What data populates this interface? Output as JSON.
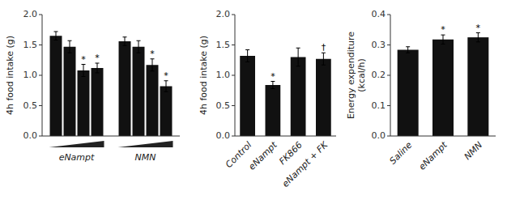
{
  "chart_data": [
    {
      "type": "bar",
      "y_label": "4h food intake (g)",
      "categories": [
        "eNampt",
        "NMN"
      ],
      "color": "#111111",
      "grid": false,
      "ylim": [
        0,
        2.0
      ],
      "yticks": [
        {
          "value": 0.0,
          "label": "0.0"
        },
        0.5,
        {
          "value": 1.0,
          "label": "1.0"
        },
        1.5,
        {
          "value": 2.0,
          "label": "2.0"
        }
      ],
      "series": [
        {
          "values": [
            1.65,
            1.56
          ],
          "errors": [
            0.07,
            0.07
          ]
        },
        {
          "values": [
            1.47,
            1.47
          ],
          "errors": [
            0.1,
            0.1
          ]
        },
        {
          "values": [
            1.08,
            1.17
          ],
          "errors": [
            0.1,
            0.1
          ],
          "annotations": [
            "*",
            "*"
          ]
        },
        {
          "values": [
            1.12,
            0.82
          ],
          "errors": [
            0.08,
            0.09
          ],
          "annotations": [
            "*",
            "*"
          ]
        }
      ]
    },
    {
      "type": "bar",
      "y_label": "4h food intake (g)",
      "categories": [
        "Control",
        "eNampt",
        "FK866",
        "eNampt + FK"
      ],
      "values": [
        1.32,
        0.84,
        1.3,
        1.27
      ],
      "errors": [
        0.1,
        0.06,
        0.15,
        0.1
      ],
      "annotations": [
        null,
        "*",
        null,
        "†"
      ],
      "color": "#111111",
      "grid": false,
      "ylim": [
        0,
        2.0
      ],
      "yticks": [
        {
          "value": 0.0,
          "label": "0.0"
        },
        0.5,
        {
          "value": 1.0,
          "label": "1.0"
        },
        1.5,
        {
          "value": 2.0,
          "label": "2.0"
        }
      ]
    },
    {
      "type": "bar",
      "y_label": "Energy expenditure\n(kcal/h)",
      "categories": [
        "Saline",
        "eNampt",
        "NMN"
      ],
      "values": [
        0.284,
        0.318,
        0.325
      ],
      "errors": [
        0.01,
        0.015,
        0.015
      ],
      "annotations": [
        null,
        "*",
        "*"
      ],
      "color": "#111111",
      "grid": false,
      "ylim": [
        0,
        0.4
      ],
      "yticks": [
        {
          "value": 0.0,
          "label": "0.0"
        },
        0.1,
        0.2,
        0.3,
        0.4
      ]
    }
  ]
}
